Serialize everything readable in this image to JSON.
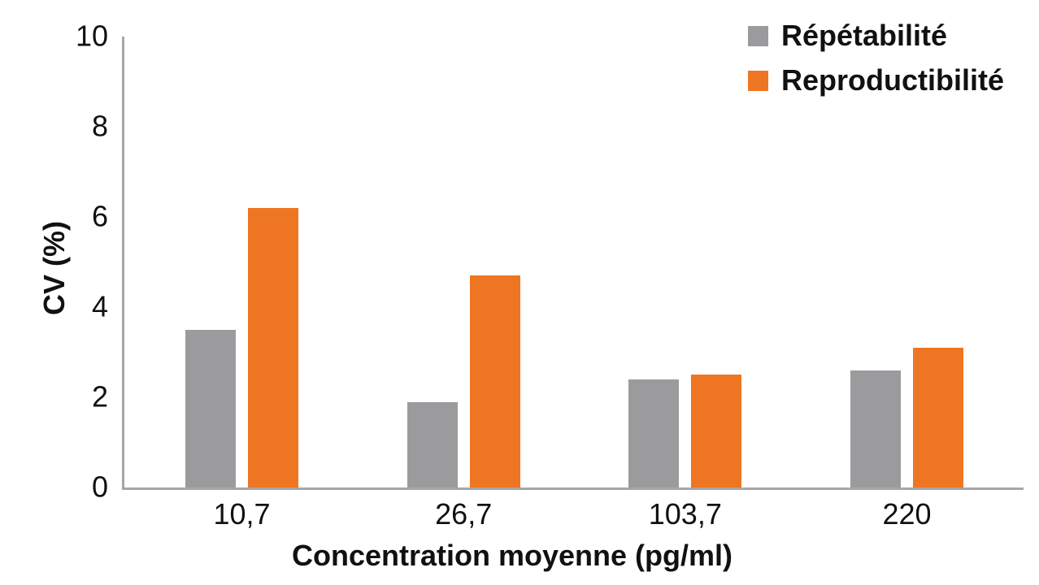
{
  "chart_data": {
    "type": "bar",
    "title": "",
    "categories": [
      "10,7",
      "26,7",
      "103,7",
      "220"
    ],
    "series": [
      {
        "name": "Répétabilité",
        "color": "#9b9b9d",
        "values": [
          3.5,
          1.9,
          2.4,
          2.6
        ]
      },
      {
        "name": "Reproductibilité",
        "color": "#ee7623",
        "values": [
          6.2,
          4.7,
          2.5,
          3.1
        ]
      }
    ],
    "xlabel": "Concentration moyenne (pg/ml)",
    "ylabel": "CV (%)",
    "ylim": [
      0,
      10
    ],
    "yticks": [
      0,
      2,
      4,
      6,
      8,
      10
    ],
    "grid": false,
    "legend_position": "top-right"
  },
  "colors": {
    "axis": "#a6a6a6",
    "text": "#111111",
    "background": "#ffffff"
  }
}
